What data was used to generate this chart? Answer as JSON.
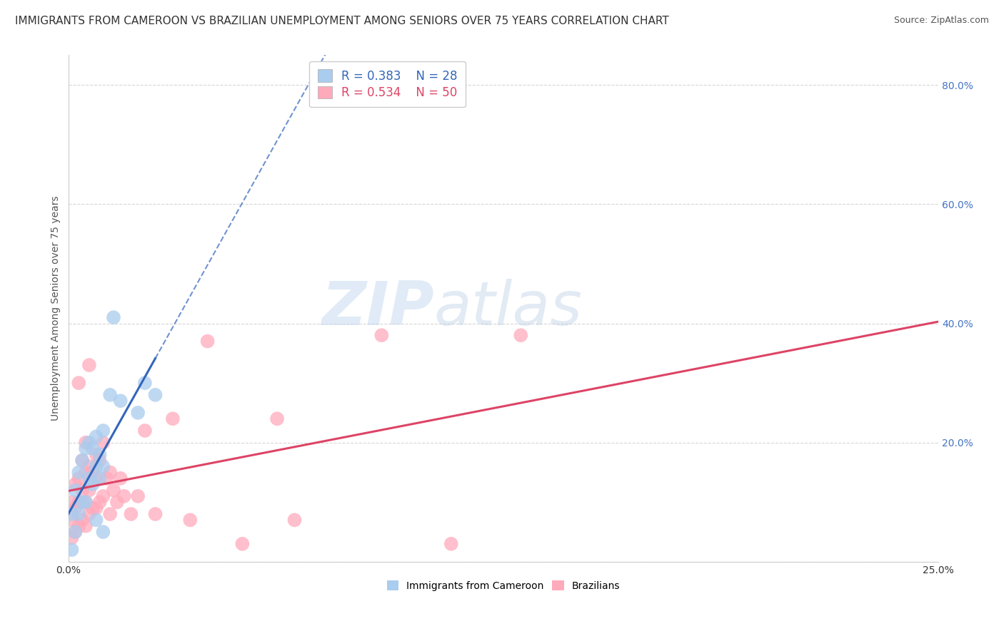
{
  "title": "IMMIGRANTS FROM CAMEROON VS BRAZILIAN UNEMPLOYMENT AMONG SENIORS OVER 75 YEARS CORRELATION CHART",
  "source": "Source: ZipAtlas.com",
  "ylabel": "Unemployment Among Seniors over 75 years",
  "xlim": [
    0.0,
    0.25
  ],
  "ylim": [
    0.0,
    0.85
  ],
  "xticks": [
    0.0,
    0.25
  ],
  "xtick_labels": [
    "0.0%",
    "25.0%"
  ],
  "yticks_right": [
    0.0,
    0.2,
    0.4,
    0.6,
    0.8
  ],
  "right_tick_labels": [
    "",
    "20.0%",
    "40.0%",
    "60.0%",
    "80.0%"
  ],
  "series": [
    {
      "name": "Immigrants from Cameroon",
      "R": 0.383,
      "N": 28,
      "color": "#aaccee",
      "line_color": "#3366bb",
      "x": [
        0.001,
        0.001,
        0.002,
        0.002,
        0.003,
        0.003,
        0.004,
        0.004,
        0.005,
        0.005,
        0.006,
        0.006,
        0.007,
        0.007,
        0.008,
        0.008,
        0.009,
        0.009,
        0.01,
        0.01,
        0.012,
        0.013,
        0.015,
        0.02,
        0.022,
        0.025,
        0.008,
        0.01
      ],
      "y": [
        0.02,
        0.08,
        0.05,
        0.12,
        0.08,
        0.15,
        0.1,
        0.17,
        0.1,
        0.19,
        0.14,
        0.2,
        0.13,
        0.19,
        0.16,
        0.21,
        0.14,
        0.18,
        0.16,
        0.22,
        0.28,
        0.41,
        0.27,
        0.25,
        0.3,
        0.28,
        0.07,
        0.05
      ]
    },
    {
      "name": "Brazilians",
      "R": 0.534,
      "N": 50,
      "color": "#ffaabb",
      "line_color": "#dd4466",
      "x": [
        0.001,
        0.001,
        0.001,
        0.002,
        0.002,
        0.002,
        0.003,
        0.003,
        0.003,
        0.003,
        0.004,
        0.004,
        0.004,
        0.005,
        0.005,
        0.005,
        0.005,
        0.006,
        0.006,
        0.006,
        0.006,
        0.007,
        0.007,
        0.008,
        0.008,
        0.008,
        0.009,
        0.009,
        0.01,
        0.01,
        0.011,
        0.012,
        0.012,
        0.013,
        0.014,
        0.015,
        0.016,
        0.018,
        0.02,
        0.022,
        0.025,
        0.03,
        0.035,
        0.04,
        0.05,
        0.06,
        0.065,
        0.09,
        0.11,
        0.13
      ],
      "y": [
        0.04,
        0.07,
        0.1,
        0.05,
        0.09,
        0.13,
        0.06,
        0.1,
        0.14,
        0.3,
        0.07,
        0.12,
        0.17,
        0.06,
        0.1,
        0.15,
        0.2,
        0.08,
        0.12,
        0.16,
        0.33,
        0.09,
        0.15,
        0.09,
        0.14,
        0.18,
        0.1,
        0.17,
        0.11,
        0.2,
        0.14,
        0.08,
        0.15,
        0.12,
        0.1,
        0.14,
        0.11,
        0.08,
        0.11,
        0.22,
        0.08,
        0.24,
        0.07,
        0.37,
        0.03,
        0.24,
        0.07,
        0.38,
        0.03,
        0.38
      ]
    }
  ],
  "watermark_zip": "ZIP",
  "watermark_atlas": "atlas",
  "title_fontsize": 11,
  "axis_label_fontsize": 10,
  "tick_fontsize": 10,
  "legend_fontsize": 12,
  "source_fontsize": 9,
  "background_color": "#ffffff",
  "grid_color": "#cccccc"
}
